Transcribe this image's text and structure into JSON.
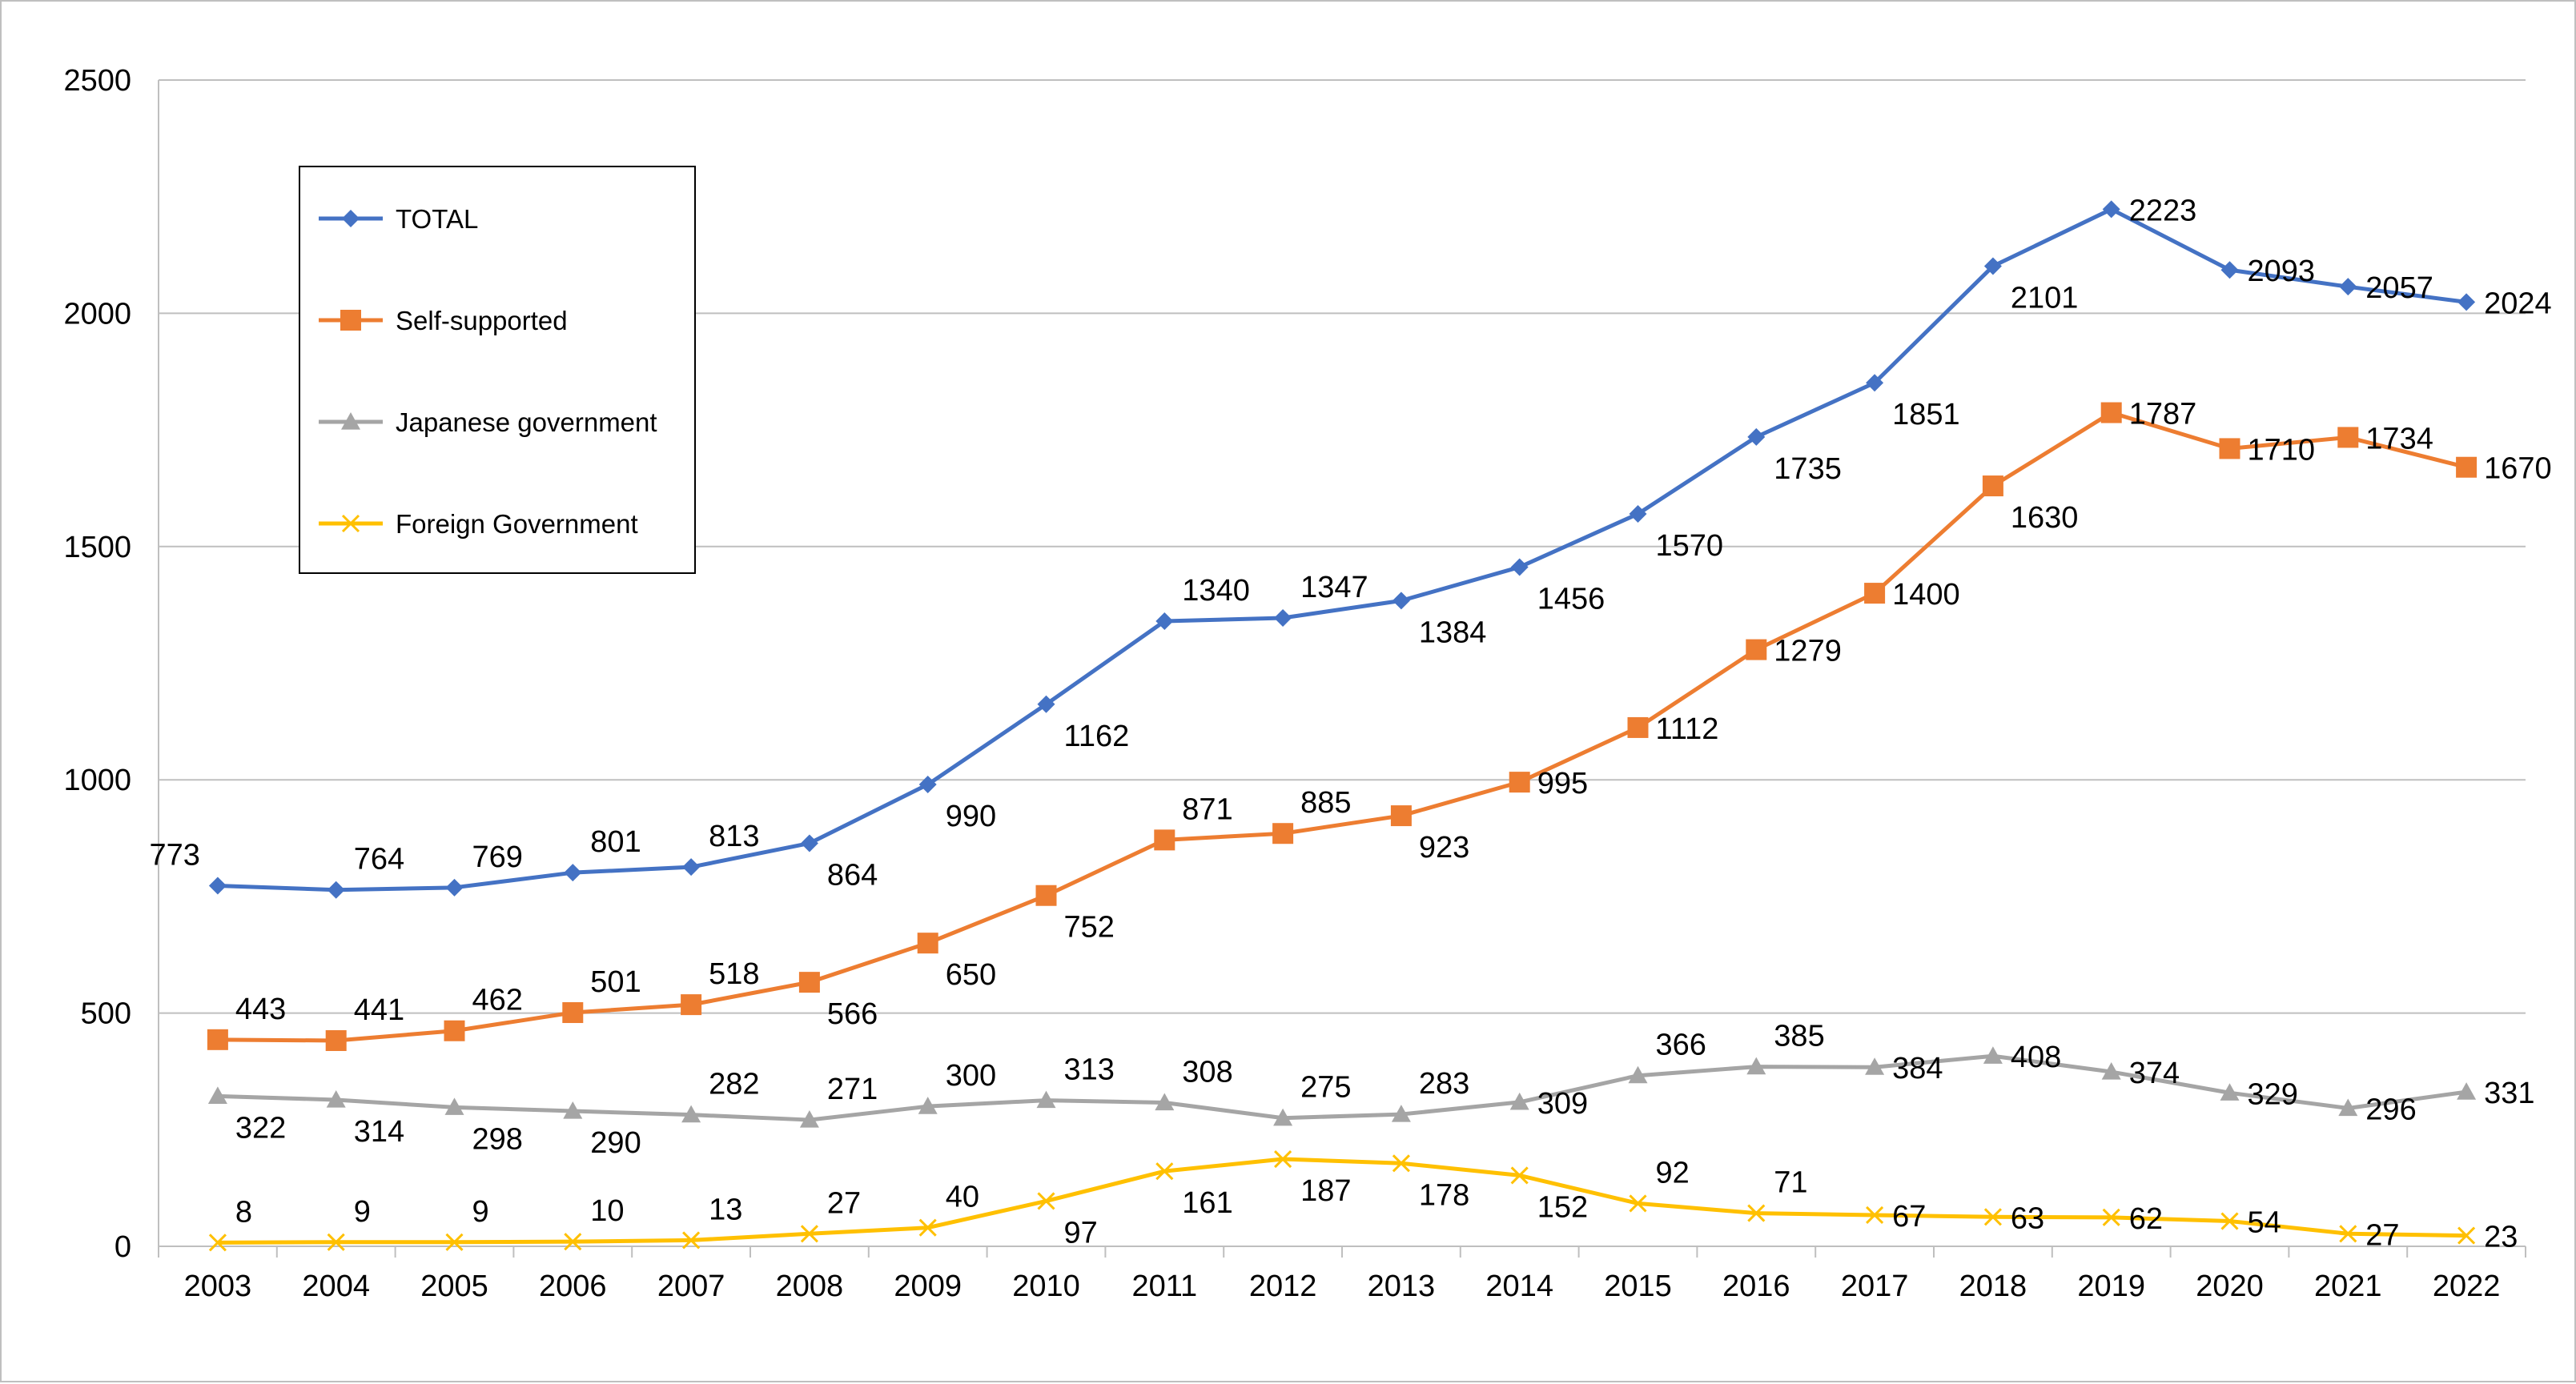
{
  "chart_data": {
    "type": "line",
    "x": [
      2003,
      2004,
      2005,
      2006,
      2007,
      2008,
      2009,
      2010,
      2011,
      2012,
      2013,
      2014,
      2015,
      2016,
      2017,
      2018,
      2019,
      2020,
      2021,
      2022
    ],
    "categories": [
      "2003",
      "2004",
      "2005",
      "2006",
      "2007",
      "2008",
      "2009",
      "2010",
      "2011",
      "2012",
      "2013",
      "2014",
      "2015",
      "2016",
      "2017",
      "2018",
      "2019",
      "2020",
      "2021",
      "2022"
    ],
    "ylim": [
      0,
      2500
    ],
    "yticks": [
      0,
      500,
      1000,
      1500,
      2000,
      2500
    ],
    "grid": true,
    "legend_position": "top-left",
    "series": [
      {
        "name": "TOTAL",
        "color": "#4472c4",
        "marker": "diamond",
        "values": [
          773,
          764,
          769,
          801,
          813,
          864,
          990,
          1162,
          1340,
          1347,
          1384,
          1456,
          1570,
          1735,
          1851,
          2101,
          2223,
          2093,
          2057,
          2024
        ]
      },
      {
        "name": "Self-supported",
        "color": "#ed7d31",
        "marker": "square",
        "values": [
          443,
          441,
          462,
          501,
          518,
          566,
          650,
          752,
          871,
          885,
          923,
          995,
          1112,
          1279,
          1400,
          1630,
          1787,
          1710,
          1734,
          1670
        ]
      },
      {
        "name": "Japanese government",
        "color": "#a5a5a5",
        "marker": "triangle",
        "values": [
          322,
          314,
          298,
          290,
          282,
          271,
          300,
          313,
          308,
          275,
          283,
          309,
          366,
          385,
          384,
          408,
          374,
          329,
          296,
          331
        ]
      },
      {
        "name": "Foreign Government",
        "color": "#ffc000",
        "marker": "x",
        "values": [
          8,
          9,
          9,
          10,
          13,
          27,
          40,
          97,
          161,
          187,
          178,
          152,
          92,
          71,
          67,
          63,
          62,
          54,
          27,
          23
        ]
      }
    ]
  }
}
